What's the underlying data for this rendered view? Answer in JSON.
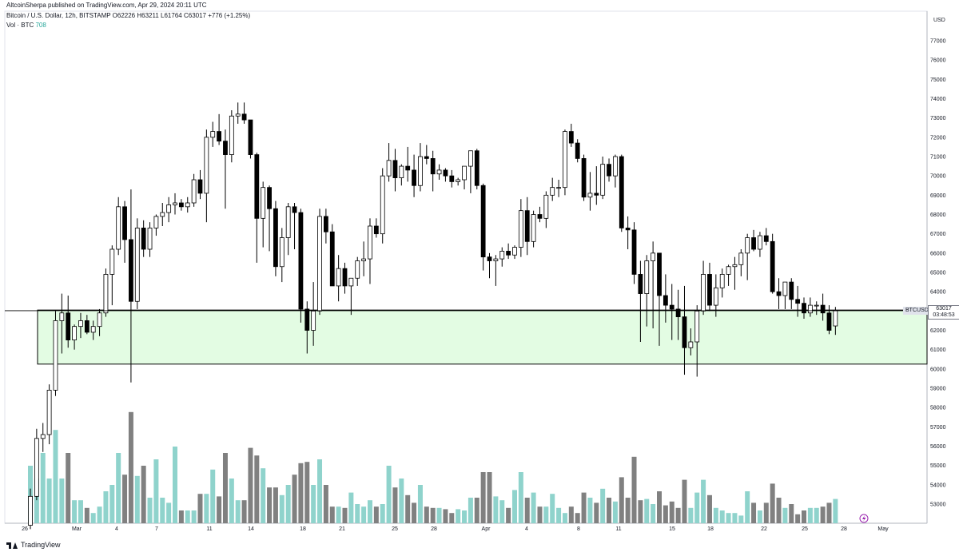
{
  "header": {
    "text": "AltcoinSherpa published on TradingView.com, Apr 29, 2024 20:11 UTC"
  },
  "legend": {
    "symbol_line": "Bitcoin / U.S. Dollar, 12h, BITSTAMP",
    "open": "O62226",
    "high": "H63211",
    "low": "L61764",
    "close": "C63017",
    "change": "+776 (+1.25%)",
    "volume_label": "Vol · BTC",
    "volume_value": "708"
  },
  "price_scale": {
    "currency": "USD",
    "ticks": [
      "77000",
      "76000",
      "75000",
      "74000",
      "73000",
      "72000",
      "71000",
      "70000",
      "69000",
      "68000",
      "67000",
      "66000",
      "65000",
      "64000",
      "63000",
      "62000",
      "61000",
      "60000",
      "59000",
      "58000",
      "57000",
      "56000",
      "55000",
      "54000",
      "53000"
    ]
  },
  "last_price": {
    "ticker": "BTCUSD",
    "price": "63017",
    "countdown": "03:48:53"
  },
  "footer": {
    "brand": "TradingView"
  },
  "colors": {
    "up_candle_fill": "#ffffff",
    "down_candle_fill": "#000000",
    "candle_border": "#000000",
    "volume_up": "#8fd3cc",
    "volume_down": "#808080",
    "zone_fill": "#e3fce3",
    "zone_border": "#000000"
  },
  "chart_data": {
    "type": "candlestick",
    "interval": "12h",
    "y_range": [
      52100,
      77800
    ],
    "support_zone": {
      "low": 60250,
      "high": 63050
    },
    "x_ticks": [
      "26",
      "Mar",
      "4",
      "7",
      "11",
      "14",
      "18",
      "21",
      "25",
      "28",
      "Apr",
      "4",
      "8",
      "11",
      "15",
      "18",
      "22",
      "25",
      "28",
      "May"
    ],
    "candles": [
      {
        "o": 51900,
        "h": 53800,
        "l": 51700,
        "c": 53400,
        "v": 4.5
      },
      {
        "o": 53400,
        "h": 56900,
        "l": 53200,
        "c": 56400,
        "v": 3.5
      },
      {
        "o": 56400,
        "h": 57200,
        "l": 55700,
        "c": 56600,
        "v": 5.5
      },
      {
        "o": 56600,
        "h": 59200,
        "l": 56100,
        "c": 58900,
        "v": 3.5
      },
      {
        "o": 58900,
        "h": 63000,
        "l": 58600,
        "c": 62500,
        "v": 7.3
      },
      {
        "o": 62500,
        "h": 63900,
        "l": 60800,
        "c": 62900,
        "v": 3.5
      },
      {
        "o": 62900,
        "h": 63800,
        "l": 61100,
        "c": 61500,
        "v": 5.5
      },
      {
        "o": 61500,
        "h": 62300,
        "l": 61000,
        "c": 62200,
        "v": 1.8
      },
      {
        "o": 62200,
        "h": 62900,
        "l": 61600,
        "c": 62500,
        "v": 1.8
      },
      {
        "o": 62500,
        "h": 62800,
        "l": 61800,
        "c": 61900,
        "v": 1.2
      },
      {
        "o": 61900,
        "h": 62500,
        "l": 61500,
        "c": 62200,
        "v": 0.8
      },
      {
        "o": 62200,
        "h": 63100,
        "l": 61700,
        "c": 62900,
        "v": 1.3
      },
      {
        "o": 62900,
        "h": 65200,
        "l": 62700,
        "c": 64900,
        "v": 2.5
      },
      {
        "o": 64900,
        "h": 66400,
        "l": 63300,
        "c": 66200,
        "v": 3.0
      },
      {
        "o": 66200,
        "h": 68900,
        "l": 65900,
        "c": 68400,
        "v": 5.5
      },
      {
        "o": 68400,
        "h": 68700,
        "l": 65500,
        "c": 66700,
        "v": 3.8
      },
      {
        "o": 66700,
        "h": 69300,
        "l": 59300,
        "c": 63500,
        "v": 8.7
      },
      {
        "o": 63500,
        "h": 67800,
        "l": 63100,
        "c": 67300,
        "v": 3.7
      },
      {
        "o": 67300,
        "h": 67700,
        "l": 65800,
        "c": 66200,
        "v": 4.5
      },
      {
        "o": 66200,
        "h": 67600,
        "l": 65800,
        "c": 67300,
        "v": 2.0
      },
      {
        "o": 67300,
        "h": 68000,
        "l": 66900,
        "c": 67900,
        "v": 5.0
      },
      {
        "o": 67900,
        "h": 68600,
        "l": 67400,
        "c": 68100,
        "v": 2.0
      },
      {
        "o": 68100,
        "h": 68900,
        "l": 67600,
        "c": 68500,
        "v": 1.6
      },
      {
        "o": 68500,
        "h": 69100,
        "l": 68000,
        "c": 68600,
        "v": 6.0
      },
      {
        "o": 68600,
        "h": 68800,
        "l": 68200,
        "c": 68400,
        "v": 1.0
      },
      {
        "o": 68400,
        "h": 68900,
        "l": 68100,
        "c": 68600,
        "v": 1.0
      },
      {
        "o": 68600,
        "h": 70100,
        "l": 68400,
        "c": 69800,
        "v": 1.0
      },
      {
        "o": 69800,
        "h": 70300,
        "l": 68800,
        "c": 69100,
        "v": 2.3
      },
      {
        "o": 69100,
        "h": 72400,
        "l": 67600,
        "c": 72000,
        "v": 2.3
      },
      {
        "o": 72000,
        "h": 72800,
        "l": 71500,
        "c": 72300,
        "v": 4.2
      },
      {
        "o": 72300,
        "h": 73200,
        "l": 71600,
        "c": 71800,
        "v": 2.1
      },
      {
        "o": 71800,
        "h": 72400,
        "l": 68300,
        "c": 71100,
        "v": 5.5
      },
      {
        "o": 71100,
        "h": 73400,
        "l": 70700,
        "c": 73100,
        "v": 3.5
      },
      {
        "o": 73100,
        "h": 73800,
        "l": 72700,
        "c": 73200,
        "v": 1.8
      },
      {
        "o": 73200,
        "h": 73800,
        "l": 72700,
        "c": 72900,
        "v": 1.8
      },
      {
        "o": 72900,
        "h": 72900,
        "l": 70900,
        "c": 71100,
        "v": 5.9
      },
      {
        "o": 71100,
        "h": 71200,
        "l": 65500,
        "c": 67800,
        "v": 5.3
      },
      {
        "o": 67800,
        "h": 69700,
        "l": 66300,
        "c": 69400,
        "v": 4.3
      },
      {
        "o": 69400,
        "h": 69500,
        "l": 66100,
        "c": 68300,
        "v": 2.8
      },
      {
        "o": 68300,
        "h": 68700,
        "l": 64800,
        "c": 65300,
        "v": 2.8
      },
      {
        "o": 65300,
        "h": 67300,
        "l": 64500,
        "c": 66800,
        "v": 2.2
      },
      {
        "o": 66800,
        "h": 68600,
        "l": 65900,
        "c": 68400,
        "v": 3.0
      },
      {
        "o": 68400,
        "h": 68600,
        "l": 66200,
        "c": 68100,
        "v": 3.8
      },
      {
        "o": 68100,
        "h": 68300,
        "l": 62400,
        "c": 63100,
        "v": 4.7
      },
      {
        "o": 63100,
        "h": 63500,
        "l": 60800,
        "c": 62000,
        "v": 4.8
      },
      {
        "o": 62000,
        "h": 64500,
        "l": 61200,
        "c": 63000,
        "v": 3.0
      },
      {
        "o": 63000,
        "h": 68300,
        "l": 62800,
        "c": 67900,
        "v": 5.0
      },
      {
        "o": 67900,
        "h": 68300,
        "l": 66500,
        "c": 67100,
        "v": 3.0
      },
      {
        "o": 67100,
        "h": 67500,
        "l": 64500,
        "c": 64300,
        "v": 1.3
      },
      {
        "o": 64300,
        "h": 65900,
        "l": 63500,
        "c": 65200,
        "v": 1.3
      },
      {
        "o": 65200,
        "h": 65500,
        "l": 63900,
        "c": 64300,
        "v": 1.2
      },
      {
        "o": 64300,
        "h": 64700,
        "l": 62800,
        "c": 64700,
        "v": 2.4
      },
      {
        "o": 64700,
        "h": 65800,
        "l": 64300,
        "c": 65600,
        "v": 1.5
      },
      {
        "o": 65600,
        "h": 66600,
        "l": 64800,
        "c": 65700,
        "v": 1.3
      },
      {
        "o": 65700,
        "h": 67800,
        "l": 64400,
        "c": 67400,
        "v": 1.8
      },
      {
        "o": 67400,
        "h": 67800,
        "l": 66800,
        "c": 67000,
        "v": 1.3
      },
      {
        "o": 67000,
        "h": 70400,
        "l": 66500,
        "c": 70000,
        "v": 1.5
      },
      {
        "o": 70000,
        "h": 71700,
        "l": 69700,
        "c": 70800,
        "v": 4.5
      },
      {
        "o": 70800,
        "h": 71400,
        "l": 69200,
        "c": 69900,
        "v": 2.8
      },
      {
        "o": 69900,
        "h": 70600,
        "l": 69500,
        "c": 70500,
        "v": 3.5
      },
      {
        "o": 70500,
        "h": 71500,
        "l": 69700,
        "c": 70300,
        "v": 2.2
      },
      {
        "o": 70300,
        "h": 71100,
        "l": 68900,
        "c": 69500,
        "v": 1.6
      },
      {
        "o": 69500,
        "h": 71700,
        "l": 69200,
        "c": 71000,
        "v": 3.0
      },
      {
        "o": 71000,
        "h": 71600,
        "l": 70600,
        "c": 70900,
        "v": 1.3
      },
      {
        "o": 70900,
        "h": 71300,
        "l": 69200,
        "c": 70100,
        "v": 1.2
      },
      {
        "o": 70100,
        "h": 70600,
        "l": 69800,
        "c": 70300,
        "v": 1.2
      },
      {
        "o": 70300,
        "h": 70400,
        "l": 69700,
        "c": 70000,
        "v": 1.1
      },
      {
        "o": 70000,
        "h": 70300,
        "l": 69400,
        "c": 69700,
        "v": 0.8
      },
      {
        "o": 69700,
        "h": 69900,
        "l": 69500,
        "c": 69800,
        "v": 1.1
      },
      {
        "o": 69800,
        "h": 70400,
        "l": 69300,
        "c": 70500,
        "v": 1.0
      },
      {
        "o": 70500,
        "h": 71200,
        "l": 69100,
        "c": 71300,
        "v": 2.0
      },
      {
        "o": 71300,
        "h": 71400,
        "l": 69300,
        "c": 69500,
        "v": 2.0
      },
      {
        "o": 69500,
        "h": 69600,
        "l": 65100,
        "c": 65800,
        "v": 4.0
      },
      {
        "o": 65800,
        "h": 66000,
        "l": 64700,
        "c": 65600,
        "v": 4.0
      },
      {
        "o": 65600,
        "h": 65900,
        "l": 64300,
        "c": 65700,
        "v": 2.1
      },
      {
        "o": 65700,
        "h": 66300,
        "l": 65300,
        "c": 66100,
        "v": 1.8
      },
      {
        "o": 66100,
        "h": 66500,
        "l": 65700,
        "c": 65900,
        "v": 1.2
      },
      {
        "o": 65900,
        "h": 66400,
        "l": 65700,
        "c": 66300,
        "v": 2.6
      },
      {
        "o": 66300,
        "h": 68800,
        "l": 65800,
        "c": 68200,
        "v": 4.0
      },
      {
        "o": 68200,
        "h": 68900,
        "l": 65900,
        "c": 66600,
        "v": 2.0
      },
      {
        "o": 66600,
        "h": 68200,
        "l": 66300,
        "c": 68000,
        "v": 2.4
      },
      {
        "o": 68000,
        "h": 68400,
        "l": 67600,
        "c": 67800,
        "v": 1.3
      },
      {
        "o": 67800,
        "h": 69200,
        "l": 67300,
        "c": 69000,
        "v": 1.3
      },
      {
        "o": 69000,
        "h": 69900,
        "l": 68700,
        "c": 69400,
        "v": 2.3
      },
      {
        "o": 69400,
        "h": 69800,
        "l": 68900,
        "c": 69400,
        "v": 1.2
      },
      {
        "o": 69400,
        "h": 72400,
        "l": 69000,
        "c": 72300,
        "v": 0.8
      },
      {
        "o": 72300,
        "h": 72700,
        "l": 71500,
        "c": 71700,
        "v": 1.3
      },
      {
        "o": 71700,
        "h": 71900,
        "l": 70700,
        "c": 70900,
        "v": 0.8
      },
      {
        "o": 70900,
        "h": 71100,
        "l": 68700,
        "c": 68900,
        "v": 2.4
      },
      {
        "o": 68900,
        "h": 70200,
        "l": 68200,
        "c": 69100,
        "v": 2.0
      },
      {
        "o": 69100,
        "h": 70500,
        "l": 68500,
        "c": 69000,
        "v": 1.6
      },
      {
        "o": 69000,
        "h": 71000,
        "l": 68800,
        "c": 70600,
        "v": 2.7
      },
      {
        "o": 70600,
        "h": 70900,
        "l": 69700,
        "c": 70000,
        "v": 2.0
      },
      {
        "o": 70000,
        "h": 71100,
        "l": 69400,
        "c": 71000,
        "v": 1.7
      },
      {
        "o": 71000,
        "h": 71100,
        "l": 67100,
        "c": 67300,
        "v": 3.6
      },
      {
        "o": 67300,
        "h": 67900,
        "l": 66200,
        "c": 67200,
        "v": 2.0
      },
      {
        "o": 67200,
        "h": 67600,
        "l": 64400,
        "c": 64900,
        "v": 5.2
      },
      {
        "o": 64900,
        "h": 65600,
        "l": 61400,
        "c": 63900,
        "v": 1.8
      },
      {
        "o": 63900,
        "h": 65900,
        "l": 62200,
        "c": 65600,
        "v": 1.9
      },
      {
        "o": 65600,
        "h": 66600,
        "l": 62100,
        "c": 66000,
        "v": 1.5
      },
      {
        "o": 66000,
        "h": 66000,
        "l": 61200,
        "c": 63800,
        "v": 2.5
      },
      {
        "o": 63800,
        "h": 64900,
        "l": 62400,
        "c": 63300,
        "v": 1.4
      },
      {
        "o": 63300,
        "h": 64400,
        "l": 61500,
        "c": 63100,
        "v": 1.7
      },
      {
        "o": 63100,
        "h": 64100,
        "l": 61500,
        "c": 62700,
        "v": 1.2
      },
      {
        "o": 62700,
        "h": 64300,
        "l": 59700,
        "c": 61100,
        "v": 3.4
      },
      {
        "o": 61100,
        "h": 62100,
        "l": 60700,
        "c": 61400,
        "v": 1.2
      },
      {
        "o": 61400,
        "h": 63300,
        "l": 59600,
        "c": 63000,
        "v": 2.4
      },
      {
        "o": 63000,
        "h": 65600,
        "l": 62800,
        "c": 64900,
        "v": 3.4
      },
      {
        "o": 64900,
        "h": 65500,
        "l": 63000,
        "c": 63300,
        "v": 2.2
      },
      {
        "o": 63300,
        "h": 64900,
        "l": 62700,
        "c": 64200,
        "v": 1.2
      },
      {
        "o": 64200,
        "h": 65200,
        "l": 63700,
        "c": 64900,
        "v": 1.0
      },
      {
        "o": 64900,
        "h": 65400,
        "l": 64300,
        "c": 65300,
        "v": 0.8
      },
      {
        "o": 65300,
        "h": 65800,
        "l": 64100,
        "c": 65400,
        "v": 0.8
      },
      {
        "o": 65400,
        "h": 66200,
        "l": 64800,
        "c": 66000,
        "v": 0.6
      },
      {
        "o": 66000,
        "h": 67000,
        "l": 64600,
        "c": 66800,
        "v": 2.5
      },
      {
        "o": 66800,
        "h": 67200,
        "l": 66100,
        "c": 66200,
        "v": 1.6
      },
      {
        "o": 66200,
        "h": 67100,
        "l": 65800,
        "c": 66900,
        "v": 1.0
      },
      {
        "o": 66900,
        "h": 67300,
        "l": 66400,
        "c": 66600,
        "v": 1.6
      },
      {
        "o": 66600,
        "h": 67000,
        "l": 63900,
        "c": 64000,
        "v": 3.1
      },
      {
        "o": 64000,
        "h": 64700,
        "l": 63100,
        "c": 63800,
        "v": 2.0
      },
      {
        "o": 63800,
        "h": 64500,
        "l": 63100,
        "c": 64500,
        "v": 1.2
      },
      {
        "o": 64500,
        "h": 64700,
        "l": 63100,
        "c": 63600,
        "v": 1.5
      },
      {
        "o": 63600,
        "h": 64300,
        "l": 62700,
        "c": 63400,
        "v": 0.7
      },
      {
        "o": 63400,
        "h": 63700,
        "l": 62600,
        "c": 62900,
        "v": 1.0
      },
      {
        "o": 62900,
        "h": 63700,
        "l": 62700,
        "c": 63300,
        "v": 1.2
      },
      {
        "o": 63300,
        "h": 63500,
        "l": 62800,
        "c": 63300,
        "v": 1.2
      },
      {
        "o": 63300,
        "h": 63900,
        "l": 62500,
        "c": 62900,
        "v": 1.3
      },
      {
        "o": 62900,
        "h": 63300,
        "l": 61800,
        "c": 62000,
        "v": 1.6
      },
      {
        "o": 62226,
        "h": 63211,
        "l": 61764,
        "c": 63017,
        "v": 1.9
      }
    ]
  }
}
